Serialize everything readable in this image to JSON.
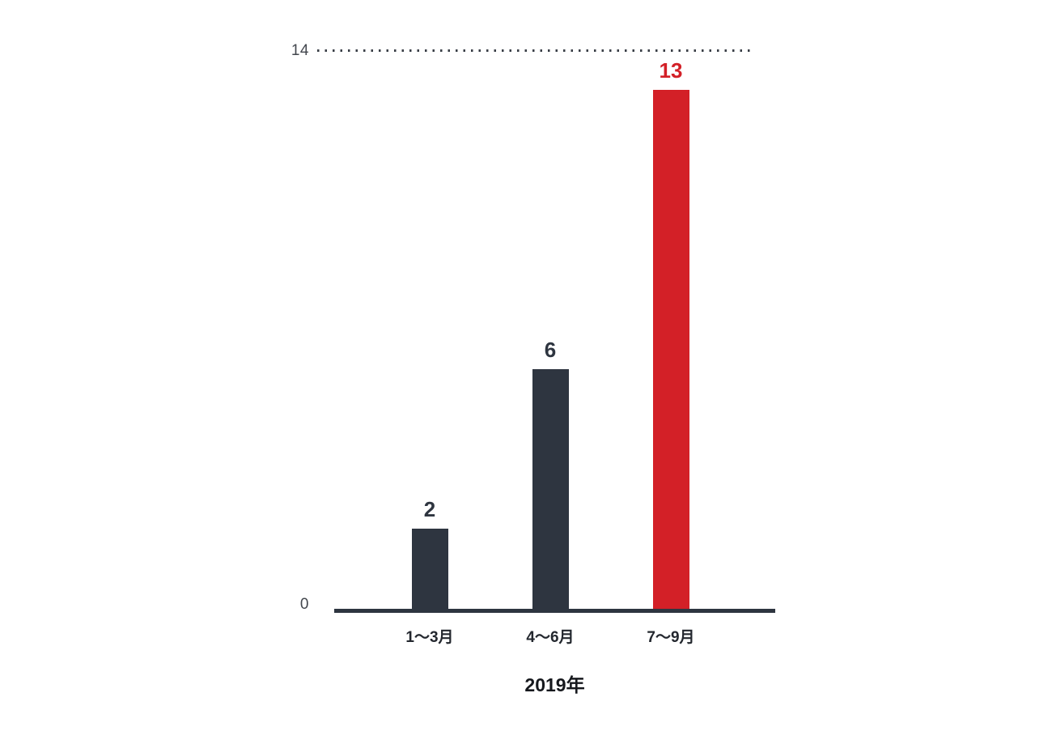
{
  "chart_data": {
    "type": "bar",
    "categories": [
      "1〜3月",
      "4〜6月",
      "7〜9月"
    ],
    "values": [
      2,
      6,
      13
    ],
    "bar_colors": [
      "#2e3540",
      "#2e3540",
      "#d32027"
    ],
    "value_label_colors": [
      "#2e3540",
      "#2e3540",
      "#d32027"
    ],
    "title": "",
    "xlabel": "2019年",
    "ylabel": "",
    "ylim": [
      0,
      14
    ],
    "yticks": [
      0,
      14
    ],
    "grid": "single dotted gridline at y=14",
    "legend_position": "none",
    "highlight_category": "7〜9月"
  },
  "axis": {
    "top_tick_label": "14",
    "bottom_tick_label": "0"
  }
}
